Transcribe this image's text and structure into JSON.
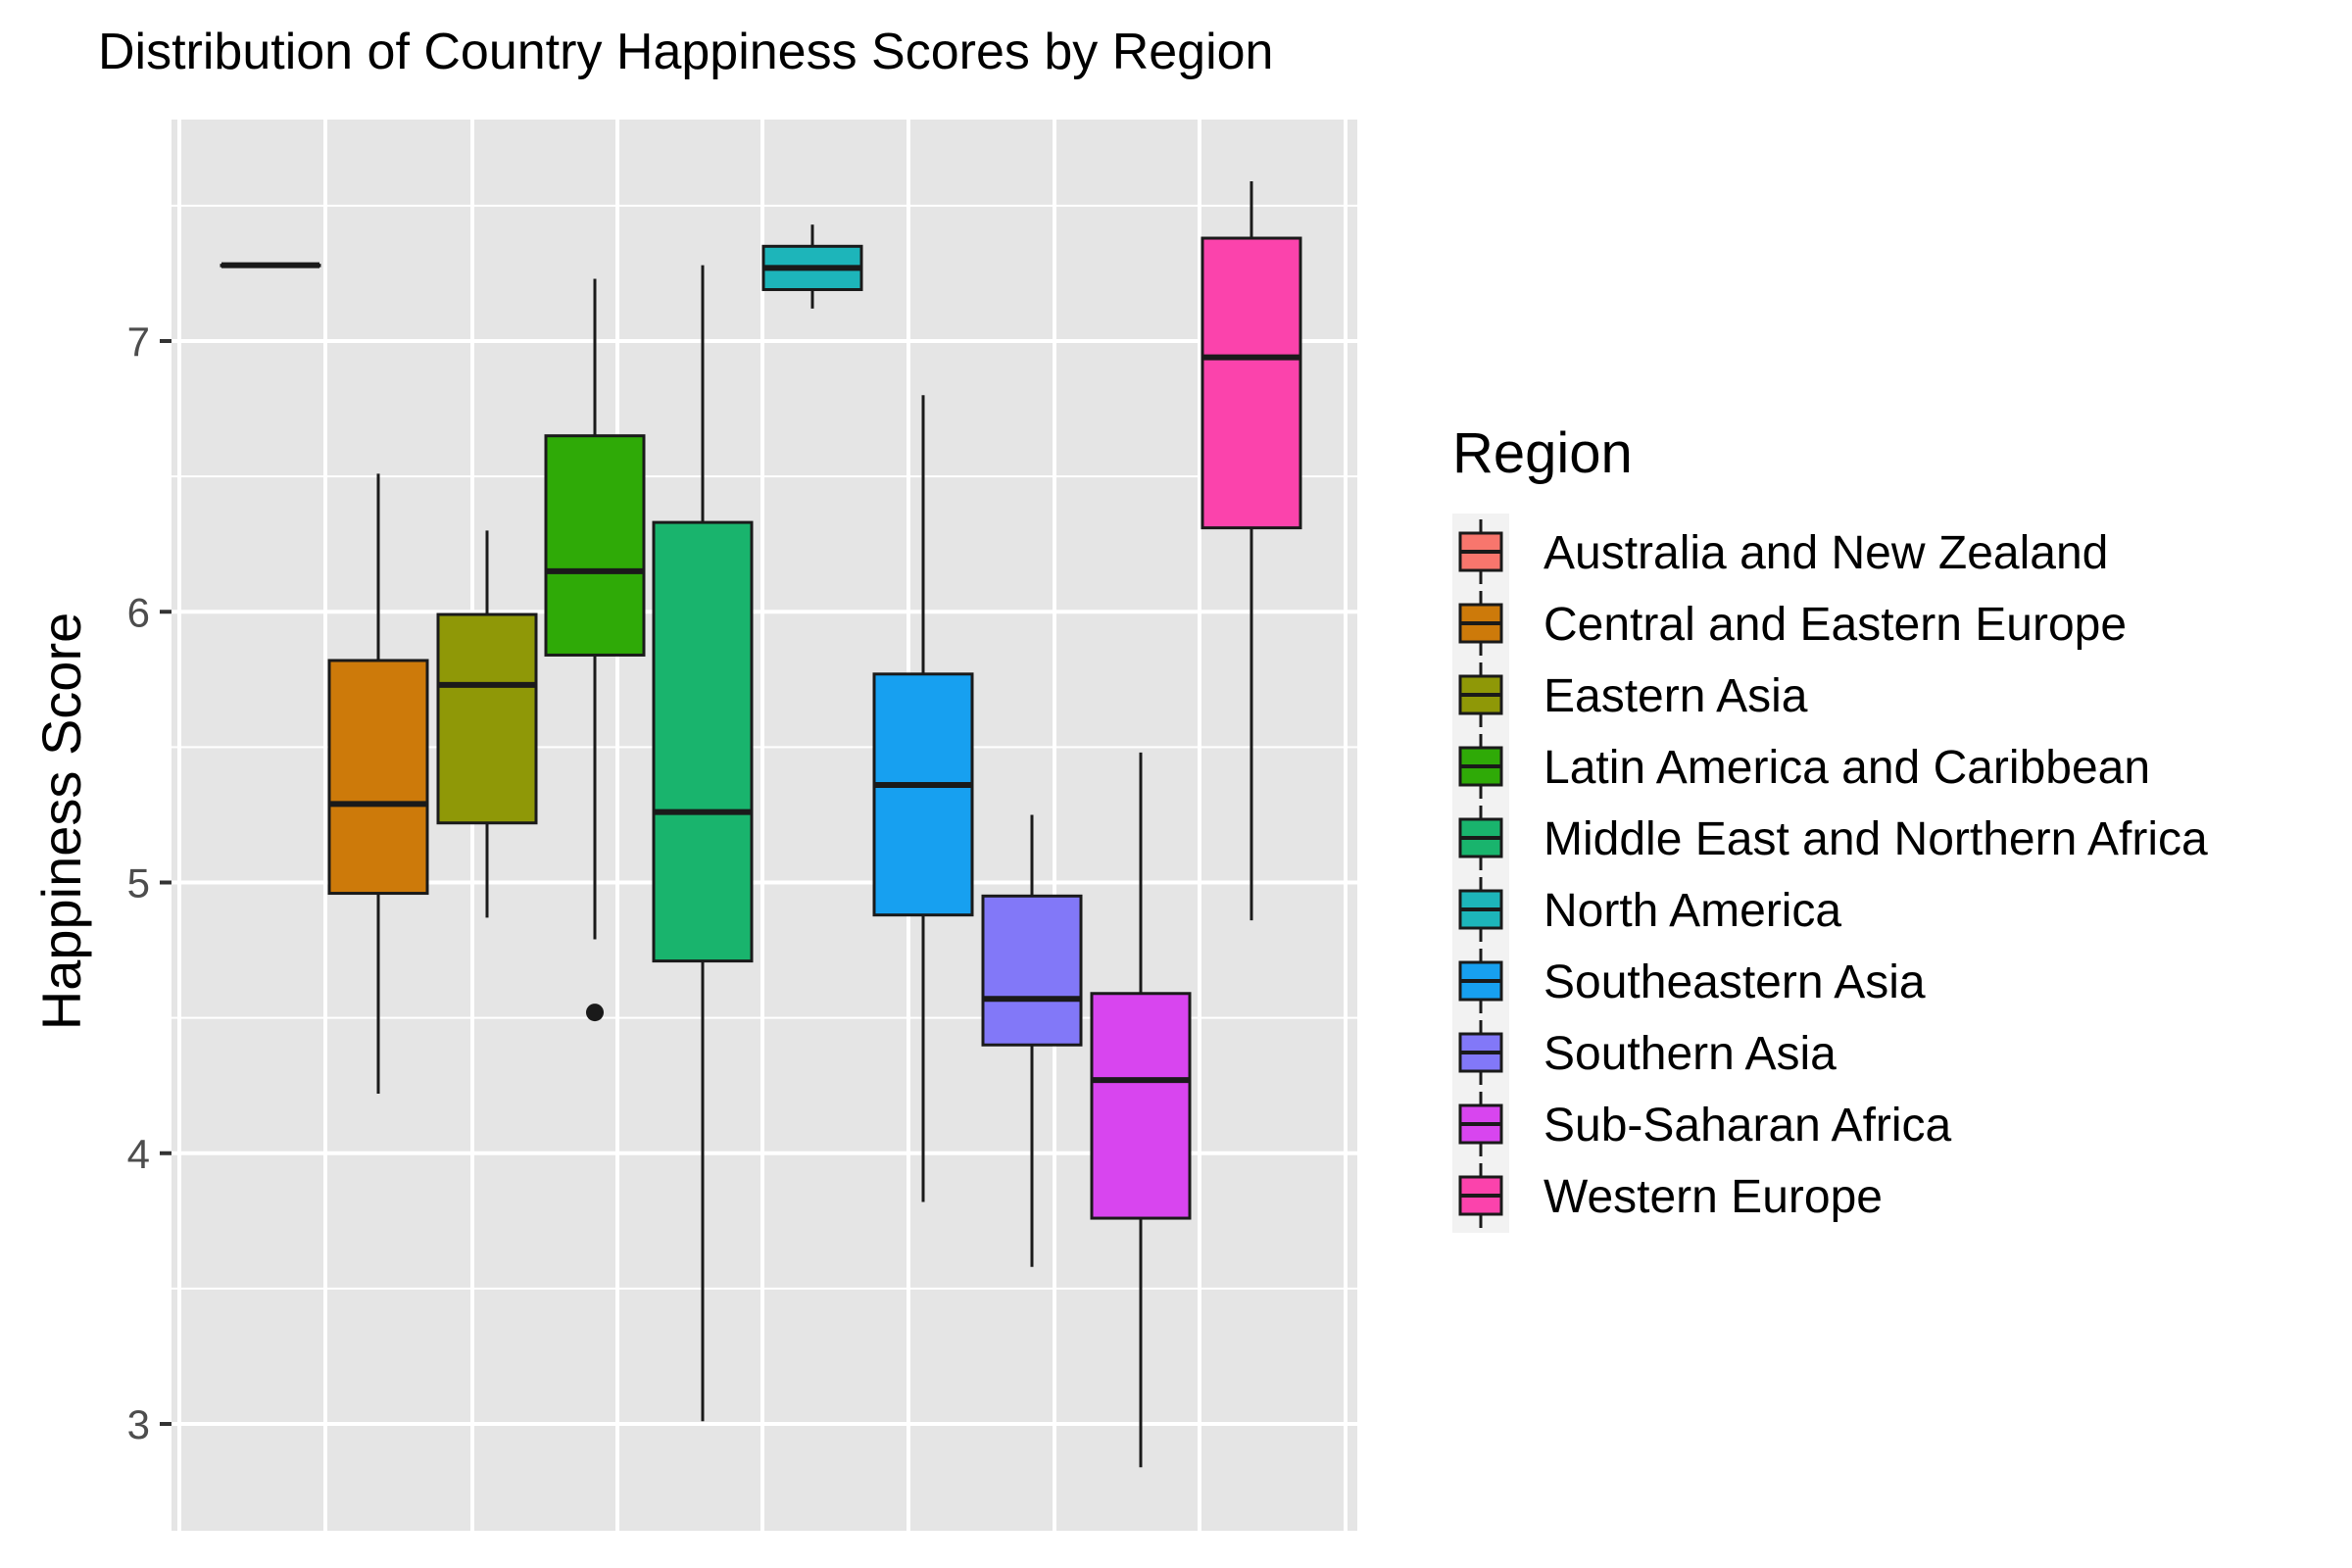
{
  "chart_data": {
    "type": "box",
    "title": "Distribution of Country Happiness Scores by Region",
    "xlabel": "",
    "ylabel": "Happiness Score",
    "ylim": [
      2.6,
      7.9
    ],
    "y_ticks": [
      3,
      4,
      5,
      6,
      7
    ],
    "x_axis_labels_shown": false,
    "legend_title": "Region",
    "legend_position": "right",
    "grid": true,
    "series": [
      {
        "name": "Australia and New Zealand",
        "color": "#F8766D",
        "min": 7.28,
        "q1": 7.28,
        "median": 7.28,
        "q3": 7.28,
        "max": 7.28,
        "outliers": []
      },
      {
        "name": "Central and Eastern Europe",
        "color": "#D39200",
        "min": 4.22,
        "q1": 4.96,
        "median": 5.29,
        "q3": 5.82,
        "max": 6.51,
        "outliers": []
      },
      {
        "name": "Eastern Asia",
        "color": "#93AA00",
        "min": 4.87,
        "q1": 5.22,
        "median": 5.73,
        "q3": 5.99,
        "max": 6.3,
        "outliers": []
      },
      {
        "name": "Latin America and Caribbean",
        "color": "#00BA38",
        "min": 4.79,
        "q1": 5.84,
        "median": 6.15,
        "q3": 6.65,
        "max": 7.23,
        "outliers": [
          4.52
        ]
      },
      {
        "name": "Middle East and Northern Africa",
        "color": "#00C19F",
        "min": 3.01,
        "q1": 4.71,
        "median": 5.26,
        "q3": 6.33,
        "max": 7.28,
        "outliers": []
      },
      {
        "name": "North America",
        "color": "#00B9E3",
        "min": 7.12,
        "q1": 7.19,
        "median": 7.27,
        "q3": 7.35,
        "max": 7.43,
        "outliers": []
      },
      {
        "name": "Southeastern Asia",
        "color": "#619CFF",
        "min": 3.82,
        "q1": 4.88,
        "median": 5.36,
        "q3": 5.77,
        "max": 6.8,
        "outliers": []
      },
      {
        "name": "Southern Asia",
        "color": "#DB72FB",
        "min": 3.58,
        "q1": 4.4,
        "median": 4.57,
        "q3": 4.95,
        "max": 5.25,
        "outliers": []
      },
      {
        "name": "Sub-Saharan Africa",
        "color": "#FF61C3",
        "min": 2.84,
        "q1": 3.76,
        "median": 4.27,
        "q3": 4.59,
        "max": 5.48,
        "outliers": []
      },
      {
        "name": "Western Europe",
        "color": "#FF4FB0",
        "min": 4.86,
        "q1": 6.31,
        "median": 6.94,
        "q3": 7.38,
        "max": 7.59,
        "outliers": []
      }
    ]
  },
  "colors": {
    "panel_background": "#E5E5E5",
    "grid_major": "#FFFFFF",
    "box_outline": "#1A1A1A"
  },
  "box_fill_colors": [
    "#F8766D",
    "#CD7A0A",
    "#8F9807",
    "#2FAA07",
    "#19B46D",
    "#1DB5BA",
    "#17A0F0",
    "#8278F8",
    "#D845EF",
    "#FB43AC"
  ]
}
